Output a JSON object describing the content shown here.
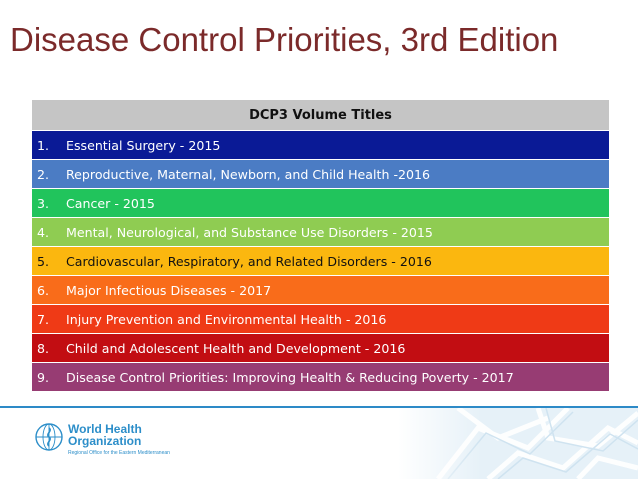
{
  "slide": {
    "title": "Disease Control Priorities, 3rd Edition"
  },
  "table": {
    "header": "DCP3 Volume Titles",
    "rows": [
      {
        "num": "1.",
        "text": "Essential Surgery - 2015",
        "bg": "#0a1a96",
        "fg": "#ffffff"
      },
      {
        "num": "2.",
        "text": "Reproductive, Maternal, Newborn, and Child Health -2016",
        "bg": "#4b7cc4",
        "fg": "#ffffff"
      },
      {
        "num": "3.",
        "text": "Cancer - 2015",
        "bg": "#21c45c",
        "fg": "#ffffff"
      },
      {
        "num": "4.",
        "text": "Mental, Neurological, and Substance Use Disorders - 2015",
        "bg": "#8fcc52",
        "fg": "#ffffff"
      },
      {
        "num": "5.",
        "text": "Cardiovascular, Respiratory, and Related Disorders - 2016",
        "bg": "#fbb70f",
        "fg": "#111111"
      },
      {
        "num": "6.",
        "text": "Major Infectious Diseases - 2017",
        "bg": "#f96c1a",
        "fg": "#ffffff"
      },
      {
        "num": "7.",
        "text": "Injury Prevention and Environmental Health - 2016",
        "bg": "#ef3a16",
        "fg": "#ffffff"
      },
      {
        "num": "8.",
        "text": "Child and Adolescent Health and Development - 2016",
        "bg": "#c20d12",
        "fg": "#ffffff"
      },
      {
        "num": "9.",
        "text": "Disease Control Priorities: Improving Health & Reducing Poverty - 2017",
        "bg": "#973c73",
        "fg": "#ffffff"
      }
    ]
  },
  "footer": {
    "org_line1": "World Health",
    "org_line2": "Organization",
    "region": "Regional Office for the Eastern Mediterranean",
    "accent_color": "#2c8ec9",
    "emblem_icon": "who-emblem-icon"
  }
}
